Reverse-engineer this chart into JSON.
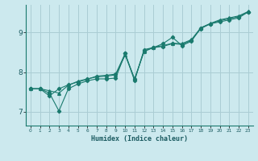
{
  "xlabel": "Humidex (Indice chaleur)",
  "ylabel": "",
  "bg_color": "#cce9ee",
  "grid_color": "#aacdd4",
  "line_color": "#1a7a6e",
  "xlim": [
    -0.5,
    23.5
  ],
  "ylim": [
    6.65,
    9.7
  ],
  "yticks": [
    7,
    8,
    9
  ],
  "xticks": [
    0,
    1,
    2,
    3,
    4,
    5,
    6,
    7,
    8,
    9,
    10,
    11,
    12,
    13,
    14,
    15,
    16,
    17,
    18,
    19,
    20,
    21,
    22,
    23
  ],
  "series1_x": [
    0,
    1,
    2,
    3,
    4,
    5,
    6,
    7,
    8,
    9,
    10,
    11,
    12,
    13,
    14,
    15,
    16,
    17,
    18,
    19,
    20,
    21,
    22,
    23
  ],
  "series1_y": [
    7.58,
    7.58,
    7.47,
    7.02,
    7.58,
    7.7,
    7.78,
    7.83,
    7.83,
    7.85,
    8.47,
    7.78,
    8.57,
    8.62,
    8.72,
    8.88,
    8.67,
    8.78,
    9.12,
    9.22,
    9.27,
    9.32,
    9.37,
    9.52
  ],
  "series2_x": [
    0,
    1,
    2,
    3,
    4,
    5,
    6,
    7,
    8,
    9,
    10,
    11,
    12,
    13,
    14,
    15,
    16,
    17,
    18,
    19,
    20,
    21,
    22,
    23
  ],
  "series2_y": [
    7.58,
    7.58,
    7.4,
    7.58,
    7.68,
    7.75,
    7.82,
    7.9,
    7.92,
    7.95,
    8.47,
    7.82,
    8.52,
    8.62,
    8.65,
    8.72,
    8.7,
    8.8,
    9.1,
    9.22,
    9.3,
    9.35,
    9.4,
    9.52
  ],
  "series3_x": [
    0,
    1,
    2,
    3,
    4,
    5,
    6,
    7,
    8,
    9,
    10,
    11,
    12,
    13,
    14,
    15,
    16,
    17,
    18,
    19,
    20,
    21,
    22,
    23
  ],
  "series3_y": [
    7.58,
    7.58,
    7.53,
    7.47,
    7.67,
    7.77,
    7.83,
    7.88,
    7.9,
    7.93,
    8.43,
    7.83,
    8.53,
    8.63,
    8.67,
    8.73,
    8.72,
    8.82,
    9.12,
    9.23,
    9.32,
    9.37,
    9.42,
    9.53
  ]
}
